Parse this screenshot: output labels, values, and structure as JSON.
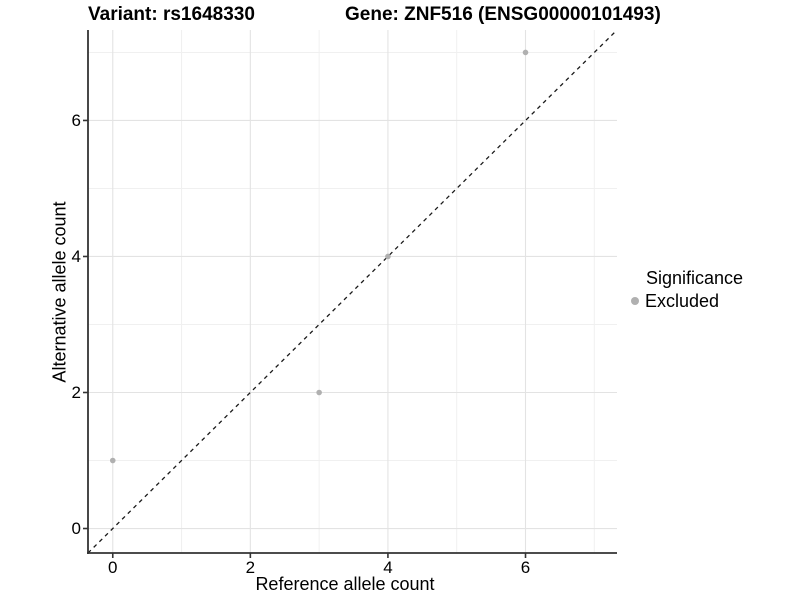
{
  "colors": {
    "background": "#ffffff",
    "grid_major": "#e3e3e3",
    "grid_minor": "#f0f0f0",
    "axis_line": "#333333",
    "tick_mark": "#333333",
    "text": "#000000",
    "point": "#b0b0b0",
    "identity_line": "#1a1a1a"
  },
  "chart_data": {
    "type": "scatter",
    "title_left": "Variant: rs1648330",
    "title_right": "Gene: ZNF516 (ENSG00000101493)",
    "xlabel": "Reference allele count",
    "ylabel": "Alternative allele count",
    "xlim": [
      -0.36,
      7.33
    ],
    "ylim": [
      -0.36,
      7.33
    ],
    "x_major_ticks": [
      0,
      2,
      4,
      6
    ],
    "y_major_ticks": [
      0,
      2,
      4,
      6
    ],
    "x_minor_gridlines": [
      1,
      3,
      5,
      7
    ],
    "y_minor_gridlines": [
      1,
      3,
      5,
      7
    ],
    "grid": "major+minor",
    "series": [
      {
        "name": "Excluded",
        "color": "#b0b0b0",
        "points": [
          [
            0,
            1
          ],
          [
            3,
            2
          ],
          [
            4,
            4
          ],
          [
            6,
            7
          ]
        ]
      }
    ],
    "identity_line": {
      "equation": "y = x",
      "style": "dashed",
      "color": "#1a1a1a"
    },
    "legend": {
      "position": "right",
      "title": "Significance",
      "entries": [
        {
          "label": "Excluded",
          "color": "#b0b0b0"
        }
      ]
    }
  }
}
